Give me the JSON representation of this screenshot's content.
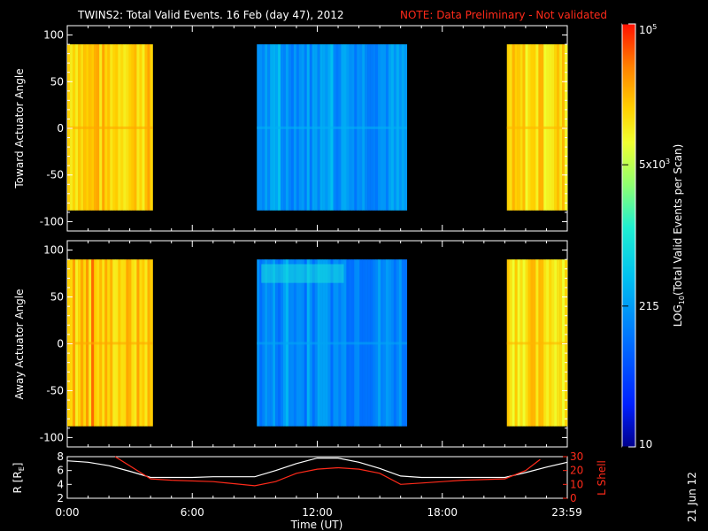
{
  "header": {
    "title": "TWINS2: Total Valid Events. 16 Feb (day  47), 2012",
    "note": "NOTE: Data Preliminary - Not validated"
  },
  "side_stamp": "21 Jun 12",
  "colors": {
    "note": "#ff2a1a",
    "lshell": "#ff2a1a",
    "radius": "#ffffff"
  },
  "chart_data": [
    {
      "type": "heatmap",
      "panel": "toward",
      "ylabel": "Toward Actuator Angle",
      "ylim": [
        -110,
        110
      ],
      "yticks": [
        100,
        50,
        0,
        -50,
        -100
      ],
      "xlim": [
        0,
        24
      ],
      "blocks": [
        {
          "start": 0.0,
          "end": 4.1,
          "level": 0.8
        },
        {
          "start": 9.1,
          "end": 16.3,
          "level": 0.32
        },
        {
          "start": 21.1,
          "end": 24.0,
          "level": 0.78
        }
      ],
      "angle_range": [
        -88,
        90
      ]
    },
    {
      "type": "heatmap",
      "panel": "away",
      "ylabel": "Away Actuator Angle",
      "ylim": [
        -110,
        110
      ],
      "yticks": [
        100,
        50,
        0,
        -50,
        -100
      ],
      "xlim": [
        0,
        24
      ],
      "blocks": [
        {
          "start": 0.0,
          "end": 4.1,
          "level": 0.8
        },
        {
          "start": 9.1,
          "end": 16.3,
          "level": 0.3
        },
        {
          "start": 21.1,
          "end": 24.0,
          "level": 0.78
        }
      ],
      "angle_range": [
        -88,
        90
      ]
    },
    {
      "type": "line",
      "panel": "orbit",
      "xlabel": "Time (UT)",
      "xticks": [
        "0:00",
        "6:00",
        "12:00",
        "18:00",
        "23:59"
      ],
      "xtick_values": [
        0,
        6,
        12,
        18,
        23.98
      ],
      "left_label": "R [R",
      "left_label_sub": "E",
      "left_label_end": "]",
      "left_ylim": [
        2,
        8
      ],
      "left_yticks": [
        "8",
        "6",
        "4",
        "2"
      ],
      "right_label": "L Shell",
      "right_ylim": [
        0,
        30
      ],
      "right_yticks": [
        "30",
        "20",
        "10",
        "0"
      ],
      "series": [
        {
          "name": "R",
          "x": [
            0,
            1,
            2,
            3,
            4,
            5,
            6,
            7,
            8,
            9,
            10,
            11,
            12,
            13,
            14,
            15,
            16,
            17,
            18,
            19,
            20,
            21,
            22,
            23,
            24
          ],
          "y": [
            7.4,
            7.2,
            6.7,
            5.9,
            5.0,
            5.0,
            5.0,
            5.1,
            5.1,
            5.1,
            6.0,
            7.0,
            7.8,
            7.8,
            7.2,
            6.3,
            5.2,
            5.0,
            5.0,
            5.0,
            5.0,
            5.0,
            5.7,
            6.5,
            7.2
          ]
        },
        {
          "name": "L Shell",
          "x": [
            2.3,
            4.0,
            5.0,
            7.0,
            9.0,
            10.0,
            11.0,
            12.0,
            13.0,
            14.0,
            15.0,
            16.0,
            17.0,
            19.0,
            21.0,
            22.0,
            22.7
          ],
          "y": [
            30,
            14,
            13,
            12,
            9,
            12,
            18,
            21,
            22,
            21,
            18,
            10,
            11,
            13,
            14,
            20,
            28
          ]
        }
      ]
    },
    {
      "type": "colorbar",
      "label": "LOG",
      "label_sub": "10",
      "label_end": "(Total Valid Events per Scan)",
      "ticks": [
        {
          "text": "10",
          "pos": 0.0
        },
        {
          "text": "215",
          "pos": 0.333
        },
        {
          "text": "5x10",
          "sup": "3",
          "pos": 0.667
        },
        {
          "text": "10",
          "sup": "5",
          "pos": 1.0
        }
      ]
    }
  ]
}
